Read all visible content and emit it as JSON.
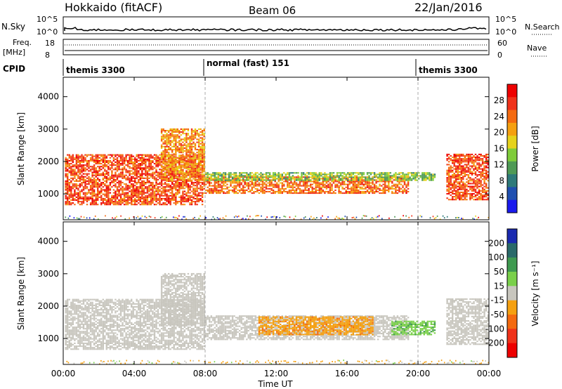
{
  "header": {
    "station": "Hokkaido (fitACF)",
    "beam": "Beam 06",
    "date": "22/Jan/2016"
  },
  "panels": {
    "nsky": {
      "label": "N.Sky",
      "ticks": [
        "10^5",
        "10^0"
      ],
      "right_ticks": [
        "10^5",
        "10^0"
      ],
      "right_label": "N.Search"
    },
    "freq": {
      "label_line1": "Freq.",
      "label_line2": "[MHz]",
      "ticks": [
        "18",
        "8"
      ],
      "right_ticks": [
        "60",
        "0"
      ],
      "right_label": "Nave"
    },
    "cpid": {
      "label": "CPID",
      "segments": [
        "themis 3300",
        "normal (fast) 151",
        "themis 3300"
      ]
    }
  },
  "chart_data": [
    {
      "type": "heatmap",
      "name": "power",
      "xlabel": "Time UT",
      "x_ticks": [
        "00:00",
        "04:00",
        "08:00",
        "12:00",
        "16:00",
        "20:00",
        "00:00"
      ],
      "x_range_hours": [
        0,
        24
      ],
      "ylabel": "Slant Range [km]",
      "y_ticks": [
        1000,
        2000,
        3000,
        4000
      ],
      "ylim": [
        200,
        4600
      ],
      "colorbar_label": "Power [dB]",
      "colorbar_ticks": [
        4,
        8,
        12,
        16,
        20,
        24,
        28
      ],
      "colorbar_range": [
        0,
        32
      ],
      "colors": [
        "#1a1aee",
        "#1f4fb0",
        "#2e7a7a",
        "#4f9a56",
        "#7fcc3a",
        "#e6d21c",
        "#f5a010",
        "#f46a10",
        "#f0321a",
        "#ee0000"
      ],
      "echo_regions": [
        {
          "start_h": 0.1,
          "end_h": 7.8,
          "range_low_km": 650,
          "range_high_km": 2200,
          "level_db": 26
        },
        {
          "start_h": 5.5,
          "end_h": 7.9,
          "range_low_km": 1400,
          "range_high_km": 3000,
          "level_db": 22
        },
        {
          "start_h": 7.9,
          "end_h": 19.5,
          "range_low_km": 1000,
          "range_high_km": 1500,
          "level_db": 24
        },
        {
          "start_h": 8.0,
          "end_h": 21.0,
          "range_low_km": 1400,
          "range_high_km": 1650,
          "level_db": 14
        },
        {
          "start_h": 21.6,
          "end_h": 24.0,
          "range_low_km": 800,
          "range_high_km": 2200,
          "level_db": 26
        }
      ]
    },
    {
      "type": "heatmap",
      "name": "velocity",
      "xlabel": "Time UT",
      "x_ticks": [
        "00:00",
        "04:00",
        "08:00",
        "12:00",
        "16:00",
        "20:00",
        "00:00"
      ],
      "x_range_hours": [
        0,
        24
      ],
      "ylabel": "Slant Range [km]",
      "y_ticks": [
        1000,
        2000,
        3000,
        4000
      ],
      "ylim": [
        200,
        4600
      ],
      "colorbar_label": "Velocity [m s⁻¹]",
      "colorbar_ticks": [
        200,
        100,
        50,
        15,
        -15,
        -50,
        -100,
        -200
      ],
      "colors": [
        "#1a2ab0",
        "#2a6a6a",
        "#3f9a50",
        "#7ad04a",
        "#c8c6be",
        "#f5a010",
        "#f46a10",
        "#f0321a",
        "#ee0000"
      ],
      "echo_regions": [
        {
          "start_h": 0.1,
          "end_h": 7.9,
          "range_low_km": 650,
          "range_high_km": 2200,
          "level_ms": 0
        },
        {
          "start_h": 5.5,
          "end_h": 7.9,
          "range_low_km": 1400,
          "range_high_km": 3000,
          "level_ms": 0
        },
        {
          "start_h": 7.9,
          "end_h": 19.5,
          "range_low_km": 950,
          "range_high_km": 1700,
          "level_ms": 0
        },
        {
          "start_h": 11.0,
          "end_h": 17.5,
          "range_low_km": 1100,
          "range_high_km": 1650,
          "level_ms": -40
        },
        {
          "start_h": 18.5,
          "end_h": 21.0,
          "range_low_km": 1100,
          "range_high_km": 1550,
          "level_ms": 40
        },
        {
          "start_h": 21.6,
          "end_h": 24.0,
          "range_low_km": 800,
          "range_high_km": 2200,
          "level_ms": 0
        }
      ]
    }
  ]
}
